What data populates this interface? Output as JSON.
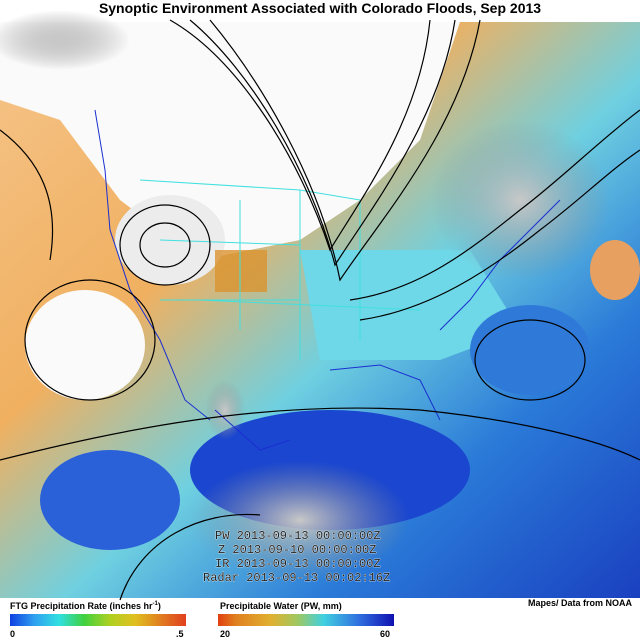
{
  "header": {
    "title": "Synoptic Environment Associated with Colorado Floods, Sep 2013"
  },
  "map": {
    "timestamps": [
      "PW 2013-09-13 00:00:00Z",
      "Z 2013-09-10 00:00:00Z",
      "IR 2013-09-13 00:00:00Z",
      "Radar 2013-09-13 00:02:16Z"
    ]
  },
  "legend": {
    "precipitation": {
      "title": "FTG Precipitation Rate (inches hr",
      "superscript": "-1",
      "title_end": ")",
      "min_label": "0",
      "max_label": ".5"
    },
    "precipitable_water": {
      "title": "Precipitable Water (PW, mm)",
      "min_label": "20",
      "max_label": "60"
    }
  },
  "credit": "Mapes/ Data from NOAA"
}
